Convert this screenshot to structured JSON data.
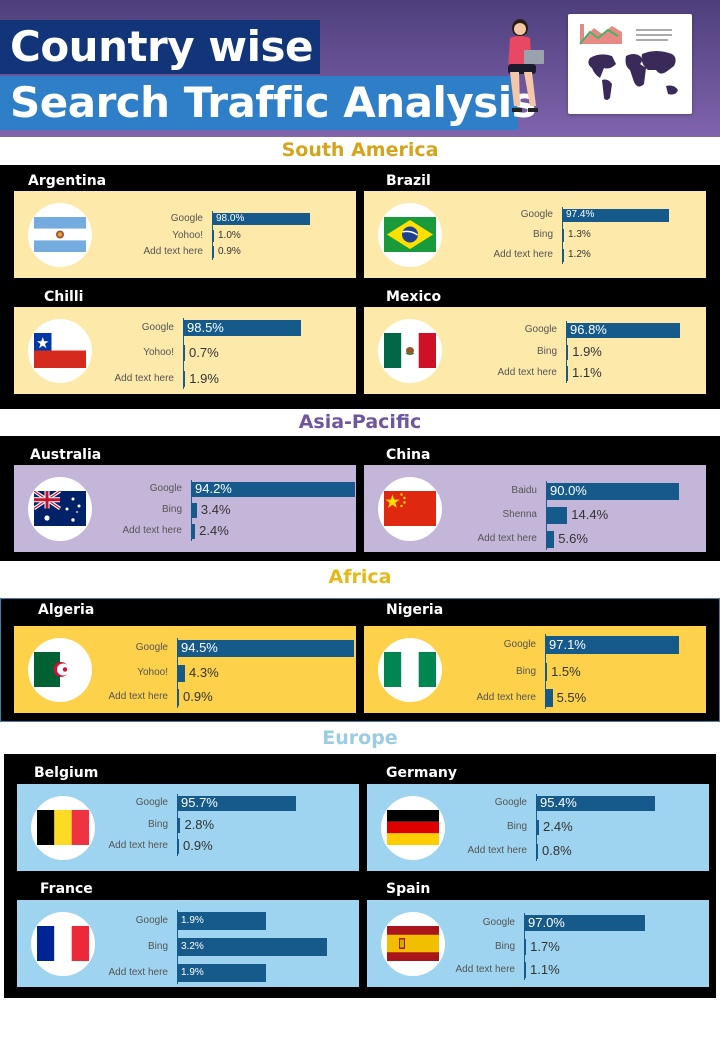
{
  "title": {
    "line1": "Country wise",
    "line2": "Search Traffic Analysis"
  },
  "colors": {
    "south_america": "#fde9aa",
    "asia_pacific": "#c3b6d9",
    "africa": "#fdd14a",
    "europe": "#9ed4ef",
    "bar": "#155a8a"
  },
  "icons": {
    "presenter": "woman-with-laptop-icon",
    "map": "world-map-chart-icon"
  },
  "sections": [
    {
      "id": "south-america",
      "title": "South America",
      "color": "#d4a51c"
    },
    {
      "id": "asia-pacific",
      "title": "Asia-Pacific",
      "color": "#6f57a0"
    },
    {
      "id": "africa",
      "title": "Africa",
      "color": "#e8b718"
    },
    {
      "id": "europe",
      "title": "Europe",
      "color": "#9ccce4"
    }
  ],
  "chart_data": [
    {
      "type": "bar",
      "title": "Argentina",
      "region": "South America",
      "categories": [
        "Google",
        "Yohoo!",
        "Add text here"
      ],
      "values": [
        98.0,
        1.0,
        0.9
      ],
      "unit": "%"
    },
    {
      "type": "bar",
      "title": "Brazil",
      "region": "South America",
      "categories": [
        "Google",
        "Bing",
        "Add text here"
      ],
      "values": [
        97.4,
        1.3,
        1.2
      ],
      "unit": "%"
    },
    {
      "type": "bar",
      "title": "Chilli",
      "region": "South America",
      "categories": [
        "Google",
        "Yohoo!",
        "Add text here"
      ],
      "values": [
        98.5,
        0.7,
        1.9
      ],
      "unit": "%"
    },
    {
      "type": "bar",
      "title": "Mexico",
      "region": "South America",
      "categories": [
        "Google",
        "Bing",
        "Add text here"
      ],
      "values": [
        96.8,
        1.9,
        1.1
      ],
      "unit": "%"
    },
    {
      "type": "bar",
      "title": "Australia",
      "region": "Asia-Pacific",
      "categories": [
        "Google",
        "Bing",
        "Add text here"
      ],
      "values": [
        94.2,
        3.4,
        2.4
      ],
      "unit": "%"
    },
    {
      "type": "bar",
      "title": "China",
      "region": "Asia-Pacific",
      "categories": [
        "Baidu",
        "Shenna",
        "Add text here"
      ],
      "values": [
        90.0,
        14.4,
        5.6
      ],
      "unit": "%"
    },
    {
      "type": "bar",
      "title": "Algeria",
      "region": "Africa",
      "categories": [
        "Google",
        "Yohoo!",
        "Add text here"
      ],
      "values": [
        94.5,
        4.3,
        0.9
      ],
      "unit": "%"
    },
    {
      "type": "bar",
      "title": "Nigeria",
      "region": "Africa",
      "categories": [
        "Google",
        "Bing",
        "Add text here"
      ],
      "values": [
        97.1,
        1.5,
        5.5
      ],
      "unit": "%"
    },
    {
      "type": "bar",
      "title": "Belgium",
      "region": "Europe",
      "categories": [
        "Google",
        "Bing",
        "Add text here"
      ],
      "values": [
        95.7,
        2.8,
        0.9
      ],
      "unit": "%"
    },
    {
      "type": "bar",
      "title": "Germany",
      "region": "Europe",
      "categories": [
        "Google",
        "Bing",
        "Add text here"
      ],
      "values": [
        95.4,
        2.4,
        0.8
      ],
      "unit": "%"
    },
    {
      "type": "bar",
      "title": "France",
      "region": "Europe",
      "categories": [
        "Google",
        "Bing",
        "Add text here"
      ],
      "values": [
        1.9,
        3.2,
        1.9
      ],
      "unit": "%"
    },
    {
      "type": "bar",
      "title": "Spain",
      "region": "Europe",
      "categories": [
        "Google",
        "Bing",
        "Add text here"
      ],
      "values": [
        97.0,
        1.7,
        1.1
      ],
      "unit": "%"
    }
  ]
}
